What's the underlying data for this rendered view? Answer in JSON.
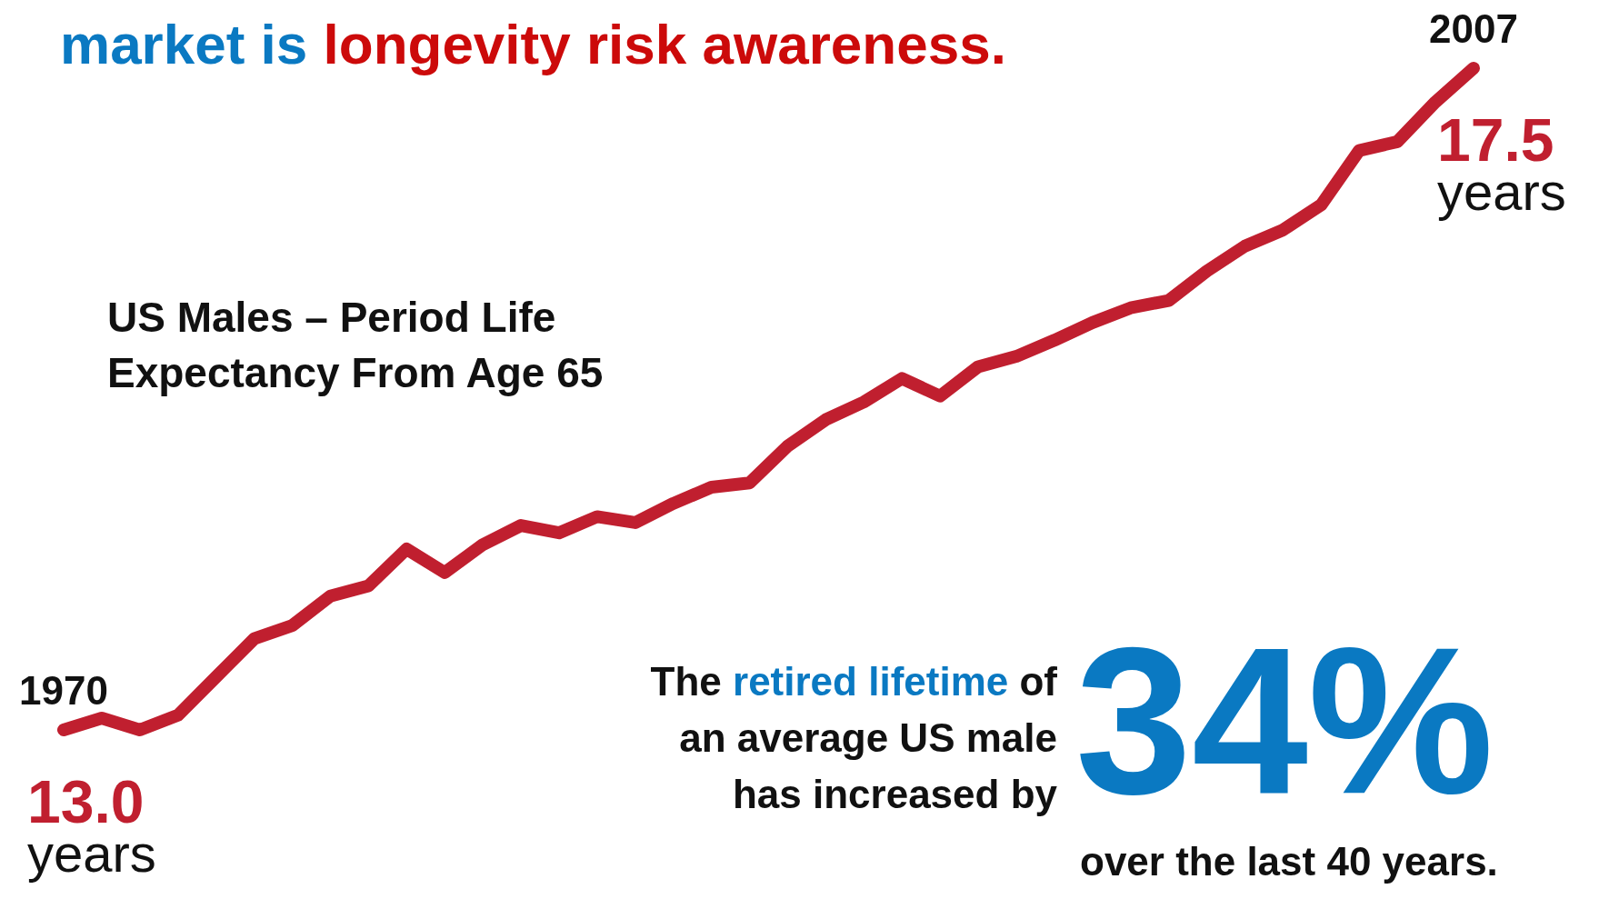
{
  "chart_data": {
    "type": "line",
    "title": "market is longevity risk awareness.",
    "categories": [
      "1970",
      null,
      null,
      null,
      null,
      null,
      null,
      null,
      null,
      null,
      null,
      null,
      null,
      null,
      null,
      null,
      null,
      null,
      null,
      null,
      null,
      null,
      null,
      null,
      null,
      null,
      null,
      null,
      null,
      null,
      null,
      null,
      null,
      null,
      null,
      null,
      null,
      "2007"
    ],
    "values": [
      13.0,
      13.08,
      13.0,
      13.1,
      13.36,
      13.62,
      13.71,
      13.91,
      13.98,
      14.23,
      14.07,
      14.26,
      14.39,
      14.34,
      14.45,
      14.41,
      14.54,
      14.65,
      14.68,
      14.93,
      15.11,
      15.23,
      15.39,
      15.27,
      15.47,
      15.54,
      15.65,
      15.77,
      15.87,
      15.92,
      16.12,
      16.29,
      16.4,
      16.57,
      16.94,
      17.0,
      17.27,
      17.5
    ],
    "value_labels": [
      "13.0",
      null,
      null,
      null,
      null,
      null,
      null,
      null,
      null,
      null,
      null,
      null,
      null,
      null,
      null,
      null,
      null,
      null,
      null,
      null,
      null,
      null,
      null,
      null,
      null,
      null,
      null,
      null,
      null,
      null,
      null,
      null,
      null,
      null,
      null,
      null,
      null,
      "17.5"
    ],
    "color": "#c01f2f",
    "tick_labels": "x",
    "annotations": [
      "US Males – Period Life Expectancy From Age 65",
      "The",
      "retired lifetime",
      "of",
      "an average US male has increased by",
      "34%",
      "over the last 40 years.",
      {
        "text": "years",
        "x": "1970",
        "y": 13.0
      },
      {
        "text": "years",
        "x": "2007",
        "y": 17.5
      }
    ]
  }
}
